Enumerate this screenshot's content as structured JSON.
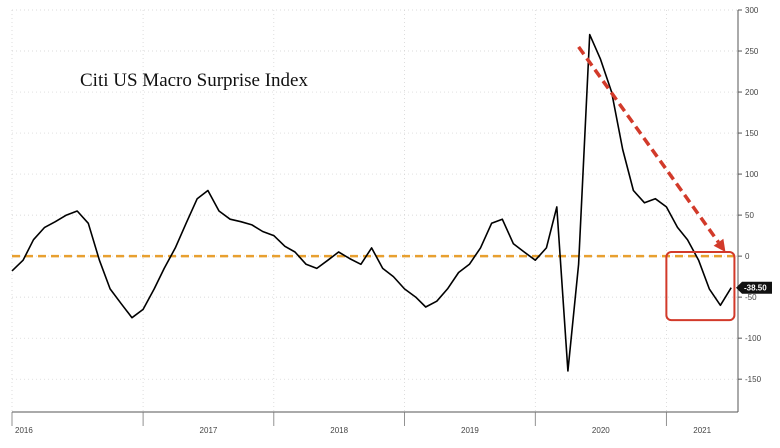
{
  "chart_data": {
    "type": "line",
    "title": "Citi US Macro Surprise Index",
    "xlabel": "",
    "ylabel": "",
    "ylim": [
      -190,
      300
    ],
    "xlim": [
      "2016-01-01",
      "2021-07-20"
    ],
    "grid": true,
    "y_ticks": [
      300,
      250,
      200,
      150,
      100,
      50,
      0,
      -50,
      -100,
      -150
    ],
    "y_tick_labels": [
      "300",
      "250",
      "200",
      "150",
      "100",
      "50",
      "0",
      "-50",
      "-100",
      "-150"
    ],
    "x_ticks": [
      {
        "label": "2016",
        "date": "2016-01-01"
      },
      {
        "label": "2017",
        "date": "2017-01-01"
      },
      {
        "label": "2018",
        "date": "2018-01-01"
      },
      {
        "label": "2019",
        "date": "2019-01-01"
      },
      {
        "label": "2020",
        "date": "2020-01-01"
      },
      {
        "label": "2021",
        "date": "2021-01-01"
      }
    ],
    "series": [
      {
        "color": "#000000",
        "x": [
          "2016-01-01",
          "2016-02-01",
          "2016-03-01",
          "2016-04-01",
          "2016-05-01",
          "2016-06-01",
          "2016-07-01",
          "2016-08-01",
          "2016-09-01",
          "2016-10-01",
          "2016-11-01",
          "2016-12-01",
          "2017-01-01",
          "2017-02-01",
          "2017-03-01",
          "2017-04-01",
          "2017-05-01",
          "2017-06-01",
          "2017-07-01",
          "2017-08-01",
          "2017-09-01",
          "2017-10-01",
          "2017-11-01",
          "2017-12-01",
          "2018-01-01",
          "2018-02-01",
          "2018-03-01",
          "2018-04-01",
          "2018-05-01",
          "2018-06-01",
          "2018-07-01",
          "2018-08-01",
          "2018-09-01",
          "2018-10-01",
          "2018-11-01",
          "2018-12-01",
          "2019-01-01",
          "2019-02-01",
          "2019-03-01",
          "2019-04-01",
          "2019-05-01",
          "2019-06-01",
          "2019-07-01",
          "2019-08-01",
          "2019-09-01",
          "2019-10-01",
          "2019-11-01",
          "2019-12-01",
          "2020-01-01",
          "2020-02-01",
          "2020-03-01",
          "2020-04-01",
          "2020-05-01",
          "2020-06-01",
          "2020-07-01",
          "2020-08-01",
          "2020-09-01",
          "2020-10-01",
          "2020-11-01",
          "2020-12-01",
          "2021-01-01",
          "2021-02-01",
          "2021-03-01",
          "2021-04-01",
          "2021-05-01",
          "2021-06-01",
          "2021-07-01"
        ],
        "values": [
          -18,
          -5,
          20,
          35,
          42,
          50,
          55,
          40,
          -5,
          -40,
          -58,
          -75,
          -65,
          -40,
          -15,
          10,
          40,
          70,
          80,
          55,
          45,
          42,
          38,
          30,
          25,
          12,
          5,
          -10,
          -15,
          -5,
          5,
          -3,
          -10,
          10,
          -15,
          -25,
          -40,
          -50,
          -62,
          -55,
          -40,
          -20,
          -10,
          10,
          40,
          45,
          15,
          5,
          -5,
          10,
          60,
          -140,
          -10,
          270,
          240,
          200,
          130,
          80,
          65,
          70,
          60,
          35,
          20,
          -5,
          -40,
          -60,
          -38.5
        ]
      }
    ],
    "last_value_label": "-38.50",
    "annotations": [
      {
        "type": "horizontal-line",
        "y": 0,
        "color": "#e8a030",
        "style": "dashed"
      },
      {
        "type": "arrow",
        "from": [
          "2020-05-01",
          255
        ],
        "to": [
          "2021-06-15",
          5
        ],
        "color": "#d23a2a",
        "style": "dashed"
      },
      {
        "type": "box",
        "x": [
          "2021-01-01",
          "2021-07-10"
        ],
        "y": [
          -78,
          5
        ],
        "color": "#d23a2a"
      }
    ]
  }
}
